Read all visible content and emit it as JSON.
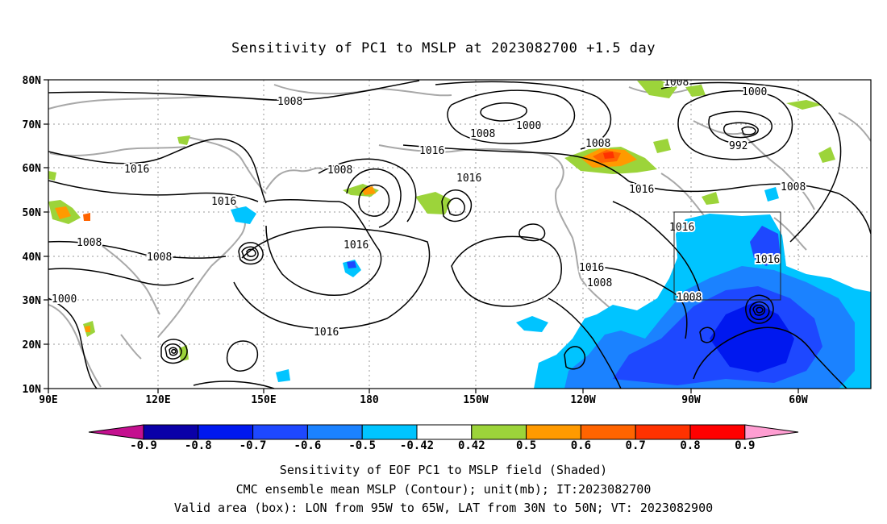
{
  "title": "Sensitivity of PC1 to MSLP at 2023082700 +1.5 day",
  "lat_labels": [
    "80N",
    "70N",
    "60N",
    "50N",
    "40N",
    "30N",
    "20N",
    "10N"
  ],
  "lon_labels": [
    "90E",
    "120E",
    "150E",
    "180",
    "150W",
    "120W",
    "90W",
    "60W"
  ],
  "contour_labels": [
    "1008",
    "1008",
    "1000",
    "1008",
    "1016",
    "1000",
    "992",
    "1016",
    "1008",
    "1016",
    "1016",
    "1008",
    "1016",
    "1008",
    "1008",
    "1016",
    "1016",
    "1016",
    "1016",
    "1008",
    "1008",
    "1000",
    "1016",
    "1008"
  ],
  "colorbar": {
    "labels": [
      "-0.9",
      "-0.8",
      "-0.7",
      "-0.6",
      "-0.5",
      "-0.42",
      "0.42",
      "0.5",
      "0.6",
      "0.7",
      "0.8",
      "0.9"
    ],
    "colors": [
      "#c4108f",
      "#0a00a8",
      "#0018ef",
      "#1e48ff",
      "#1b82ff",
      "#00c4ff",
      "#ffffff",
      "#9cd43a",
      "#ff9a00",
      "#ff6400",
      "#ff3200",
      "#ff0000",
      "#ff9ed2"
    ]
  },
  "captions": [
    "Sensitivity of EOF PC1 to MSLP field (Shaded)",
    "CMC ensemble mean MSLP (Contour); unit(mb); IT:2023082700",
    "Valid area (box): LON from 95W to 65W, LAT from 30N to 50N; VT: 2023082900"
  ]
}
